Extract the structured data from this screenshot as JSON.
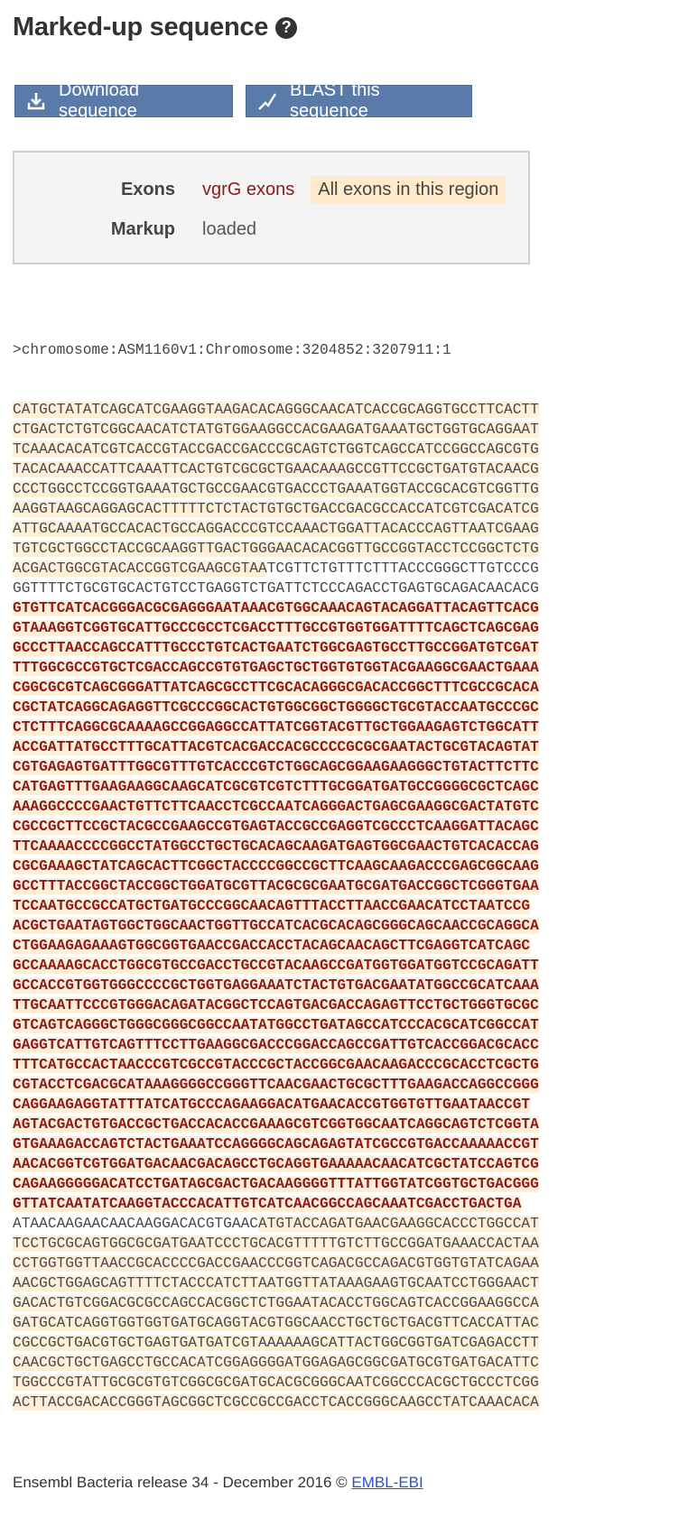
{
  "page_title": "Marked-up sequence",
  "help_icon": "question-circle-icon",
  "buttons": {
    "download_label": "Download sequence",
    "download_icon": "download-icon",
    "blast_label": "BLAST this sequence",
    "blast_icon": "blast-icon"
  },
  "config": {
    "exons_label": "Exons",
    "exons_value": "vgrG exons",
    "exons_option": "All exons in this region",
    "markup_label": "Markup",
    "markup_value": "loaded"
  },
  "sequence": {
    "header": ">chromosome:ASM1160v1:Chromosome:3204852:3207911:1",
    "lines": [
      {
        "seg": [
          {
            "t": "CATGCTATATCAGCATCGAAGGTAAGACACAGGGCAACATCACCGCAGGTGCCTTCACTT",
            "c": "flank"
          }
        ]
      },
      {
        "seg": [
          {
            "t": "CTGACTCTGTCGGCAACATCTATGTGGAAGGCCACGAAGATGAAATGCTGGTGCAGGAAT",
            "c": "flank"
          }
        ]
      },
      {
        "seg": [
          {
            "t": "TCAAACACATCGTCACCGTACCGACCGACCCGCAGTCTGGTCAGCCATCCGGCCAGCGTG",
            "c": "flank"
          }
        ]
      },
      {
        "seg": [
          {
            "t": "TACACAAACCATTCAAATTCACTGTCGCGCTGAACAAAGCCGTTCCGCTGATGTACAACG",
            "c": "flank"
          }
        ]
      },
      {
        "seg": [
          {
            "t": "CCCTGGCCTCCGGTGAAATGCTGCCGAACGTGACCCTGAAATGGTACCGCACGTCGGTTG",
            "c": "flank"
          }
        ]
      },
      {
        "seg": [
          {
            "t": "AAGGTAAGCAGGAGCACTTTTTCTCTACTGTGCTGACCGACGCCACCATCGTCGACATCG",
            "c": "flank"
          }
        ]
      },
      {
        "seg": [
          {
            "t": "ATTGCAAAATGCCACACTGCCAGGACCCGTCCAAACTGGATTACACCCAGTTAATCGAAG",
            "c": "flank"
          }
        ]
      },
      {
        "seg": [
          {
            "t": "TGTCGCTGGCCTACCGCAAGGTTGACTGGGAACACACGGTTGCCGGTACCTCCGGCTCTG",
            "c": "flank"
          }
        ]
      },
      {
        "seg": [
          {
            "t": "ACGACTGGCGTACACCGGTCGAAGCGTAA",
            "c": "flank"
          },
          {
            "t": "TCGTTCTGTTTCTTTACCCGGGCTTGTCCCG",
            "c": "plain"
          }
        ]
      },
      {
        "seg": [
          {
            "t": "GGTTTTCTGCGTGCACTGTCCTGAGGTCTGATTCTCCCAGACCTGAGTGCAGACAACACG",
            "c": "plain"
          }
        ]
      },
      {
        "seg": [
          {
            "t": "GTGTTCATCACGGGACGCGAGGGAATAAACGTGGCAAACAGTACAGGATTACAGTTCACG",
            "c": "exon"
          }
        ]
      },
      {
        "seg": [
          {
            "t": "GTAAAGGTCGGTGCATTGCCCGCCTCGACCTTTGCCGTGGTGGATTTTCAGCTCAGCGAG",
            "c": "exon"
          }
        ]
      },
      {
        "seg": [
          {
            "t": "GCCCTTAACCAGCCATTTGCCCTGTCACTGAATCTGGCGAGTGCCTTGCCGGATGTCGAT",
            "c": "exon"
          }
        ]
      },
      {
        "seg": [
          {
            "t": "TTTGGCGCCGTGCTCGACCAGCCGTGTGAGCTGCTGGTGTGGTACGAAGGCGAACTGAAA",
            "c": "exon"
          }
        ]
      },
      {
        "seg": [
          {
            "t": "CGGCGCGTCAGCGGGATTATCAGCGCCTTCGCACAGGGCGACACCGGCTTTCGCCGCACA",
            "c": "exon"
          }
        ]
      },
      {
        "seg": [
          {
            "t": "CGCTATCAGGCAGAGGTTCGCCCGGCACTGTGGCGGCTGGGGCTGCGTACCAATGCCCGC",
            "c": "exon"
          }
        ]
      },
      {
        "seg": [
          {
            "t": "CTCTTTCAGGCGCAAAAGCCGGAGGCCATTATCGGTACGTTGCTGGAAGAGTCTGGCATT",
            "c": "exon"
          }
        ]
      },
      {
        "seg": [
          {
            "t": "ACCGATTATGCCTTTGCATTACGTCACGACCACGCCCCGCGCGAATACTGCGTACAGTAT",
            "c": "exon"
          }
        ]
      },
      {
        "seg": [
          {
            "t": "CGTGAGAGTGATTTGGCGTTTGTCACCCGTCTGGCAGCGGAAGAAGGGCTGTACTTCTTC",
            "c": "exon"
          }
        ]
      },
      {
        "seg": [
          {
            "t": "CATGAGTTTGAAGAAGGCAAGCATCGCGTCGTCTTTGCGGATGATGCCGGGGCGCTCAGC",
            "c": "exon"
          }
        ]
      },
      {
        "seg": [
          {
            "t": "AAAGGCCCCGAACTGTTCTTCAACCTCGCCAATCAGGGACTGAGCGAAGGCGACTATGTC",
            "c": "exon"
          }
        ]
      },
      {
        "seg": [
          {
            "t": "CGCCGCTTCCGCTACGCCGAAGCCGTGAGTACCGCCGAGGTCGCCCTCAAGGATTACAGC",
            "c": "exon"
          }
        ]
      },
      {
        "seg": [
          {
            "t": "TTCAAAACCCCGGCCTATGGCCTGCTGCACAGCAAGATGAGTGGCGAACTGTCACACCAG",
            "c": "exon"
          }
        ]
      },
      {
        "seg": [
          {
            "t": "CGCGAAAGCTATCAGCACTTCGGCTACCCCGGCCGCTTCAAGCAAGACCCGAGCGGCAAG",
            "c": "exon"
          }
        ]
      },
      {
        "seg": [
          {
            "t": "GCCTTTACCGGCTACCGGCTGGATGCGTTACGCGCGAATGCGATGACCGGCTCGGGTGAA",
            "c": "exon"
          }
        ]
      },
      {
        "seg": [
          {
            "t": "TCCAATGCCGCCATGCTGATGCCCGGCAACAGTTTACCTTAACCGAACATCCTAATCCG",
            "c": "exon"
          }
        ]
      },
      {
        "seg": [
          {
            "t": "ACGCTGAATAGTGGCTGGCAACTGGTTGCCATCACGCACAGCGGGCAGCAACCGCAGGCA",
            "c": "exon"
          }
        ]
      },
      {
        "seg": [
          {
            "t": "CTGGAAGAGAAAGTGGCGGTGAACCGACCACCTACAGCAACAGCTTCGAGGTCATCAGC",
            "c": "exon"
          }
        ]
      },
      {
        "seg": [
          {
            "t": "GCCAAAAGCACCTGGCGTGCCGACCTGCCGTACAAGCCGATGGTGGATGGTCCGCAGATT",
            "c": "exon"
          }
        ]
      },
      {
        "seg": [
          {
            "t": "GCCACCGTGGTGGGCCCCGCTGGTGAGGAAATCTACTGTGACGAATATGGCCGCATCAAA",
            "c": "exon"
          }
        ]
      },
      {
        "seg": [
          {
            "t": "TTGCAATTCCCGTGGGACAGATACGGCTCCAGTGACGACCAGAGTTCCTGCTGGGTGCGC",
            "c": "exon"
          }
        ]
      },
      {
        "seg": [
          {
            "t": "GTCAGTCAGGGCTGGGCGGGCGGCCAATATGGCCTGATAGCCATCCCACGCATCGGCCAT",
            "c": "exon"
          }
        ]
      },
      {
        "seg": [
          {
            "t": "GAGGTCATTGTCAGTTTCCTTGAAGGCGACCCGGACCAGCCGATTGTCACCGGACGCACC",
            "c": "exon"
          }
        ]
      },
      {
        "seg": [
          {
            "t": "TTTCATGCCACTAACCCGTCGCCGTACCCGCTACCGGCGAACAAGACCCGCACCTCGCTG",
            "c": "exon"
          }
        ]
      },
      {
        "seg": [
          {
            "t": "CGTACCTCGACGCATAAAGGGGCCGGGTTCAACGAACTGCGCTTTGAAGACCAGGCCGGG",
            "c": "exon"
          }
        ]
      },
      {
        "seg": [
          {
            "t": "CAGGAAGAGGTATTTATCATGCCCAGAAGGACATGAACACCGTGGTGTTGAATAACCGT",
            "c": "exon"
          }
        ]
      },
      {
        "seg": [
          {
            "t": "AGTACGACTGTGACCGCTGACCACACCGAAAGCGTCGGTGGCAATCAGGCAGTCTCGGTA",
            "c": "exon"
          }
        ]
      },
      {
        "seg": [
          {
            "t": "GTGAAAGACCAGTCTACTGAAATCCAGGGGCAGCAGAGTATCGCCGTGACCAAAAACCGT",
            "c": "exon"
          }
        ]
      },
      {
        "seg": [
          {
            "t": "AACACGGTCGTGGATGACAACGACAGCCTGCAGGTGAAAAACAACATCGCTATCCAGTCG",
            "c": "exon"
          }
        ]
      },
      {
        "seg": [
          {
            "t": "CAGAAGGGGGACATCCTGATAGCGACTGACAAGGGGTTTATTGGTATCGGTGCTGACGGG",
            "c": "exon"
          }
        ]
      },
      {
        "seg": [
          {
            "t": "GTTATCAATATCAAGGTACCCACATTGTCATCAACGGCCAGCAAATCGACCTGACTGA",
            "c": "exon"
          }
        ]
      },
      {
        "seg": [
          {
            "t": "ATAACAAGAACAACAAGGACACGTGAAC",
            "c": "plain"
          },
          {
            "t": "ATGTACCAGATGAACGAAGGCACCCTGGCCAT",
            "c": "flank"
          }
        ]
      },
      {
        "seg": [
          {
            "t": "TCCTGCGCAGTGGCGCGATGAATCCCTGCACGTTTTTGTCTTGCCGGATGAAACCACTAA",
            "c": "flank"
          }
        ]
      },
      {
        "seg": [
          {
            "t": "CCTGGTGGTTAACCGCACCCCGACCGAACCCGGTCAGACGCCAGACGTGGTGTATCAGAA",
            "c": "flank"
          }
        ]
      },
      {
        "seg": [
          {
            "t": "AACGCTGGAGCAGTTTTCTACCCATCTTAATGGTTATAAAGAAGTGCAATCCTGGGAACT",
            "c": "flank"
          }
        ]
      },
      {
        "seg": [
          {
            "t": "GACACTGTCGGACGCGCCAGCCACGGCTCTGGAATACACCTGGCAGTCACCGGAAGGCCA",
            "c": "flank"
          }
        ]
      },
      {
        "seg": [
          {
            "t": "GATGCATCAGGTGGTGGTGATGCAGGTACGTGGCAACCTGCTGCTGACGTTCACCATTAC",
            "c": "flank"
          }
        ]
      },
      {
        "seg": [
          {
            "t": "CGCCGCTGACGTGCTGAGTGATGATCGTAAAAAAGCATTACTGGCGGTGATCGAGACCTT",
            "c": "flank"
          }
        ]
      },
      {
        "seg": [
          {
            "t": "CAACGCTGCTGAGCCTGCCACATCGGAGGGGATGGAGAGCGGCGATGCGTGATGACATTC",
            "c": "flank"
          }
        ]
      },
      {
        "seg": [
          {
            "t": "TGGCCCGTATTGCGCGTGTCGGCGCGATGCACGCGGGCAATCGGCCCACGCTGCCCTCGG",
            "c": "flank"
          }
        ]
      },
      {
        "seg": [
          {
            "t": "ACTTACCGACACCGGGTAGCGGCTCGCCGCCGACCTCACCGGGCAAGCCTATCAAACACA",
            "c": "flank"
          }
        ]
      }
    ]
  },
  "footer": {
    "text": "Ensembl Bacteria release 34 - December 2016 © ",
    "link": "EMBL-EBI"
  }
}
